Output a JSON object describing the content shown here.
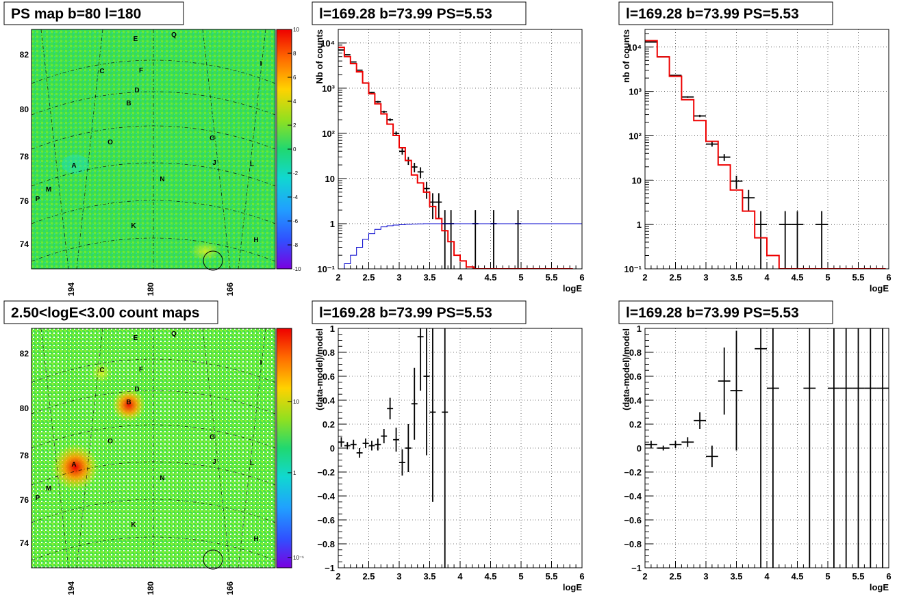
{
  "panels": {
    "map_ps": {
      "title": "PS map b=80 l=180"
    },
    "map_counts": {
      "title": "2.50<logE<3.00 count maps"
    },
    "spec_left": {
      "title": "l=169.28 b=73.99 PS=5.53"
    },
    "spec_right": {
      "title": "l=169.28 b=73.99 PS=5.53"
    },
    "res_left": {
      "title": "l=169.28 b=73.99 PS=5.53"
    },
    "res_right": {
      "title": "l=169.28 b=73.99 PS=5.53"
    }
  },
  "maps": {
    "lat_ticks": [
      "82",
      "80",
      "78",
      "76",
      "74"
    ],
    "lon_ticks": [
      "194",
      "180",
      "166"
    ],
    "sources": [
      "A",
      "B",
      "C",
      "D",
      "E",
      "F",
      "G",
      "H",
      "I",
      "J",
      "K",
      "L",
      "M",
      "N",
      "O",
      "P",
      "Q"
    ],
    "ps_colorbar": {
      "ticks": [
        "10",
        "8",
        "6",
        "4",
        "2",
        "0",
        "-2",
        "-4",
        "-6",
        "-8",
        "-10"
      ],
      "range": [
        -10,
        10
      ]
    },
    "count_colorbar": {
      "ticks": [
        "10",
        "1",
        "10⁻¹"
      ],
      "scale": "log"
    }
  },
  "chart_data": [
    {
      "type": "line",
      "title": "l=169.28 b=73.99 PS=5.53",
      "xlabel": "logE",
      "ylabel": "Nb of counts",
      "xlim": [
        2,
        6
      ],
      "ylim": [
        0.1,
        20000
      ],
      "yscale": "log",
      "x_ticks": [
        "2",
        "2.5",
        "3",
        "3.5",
        "4",
        "4.5",
        "5",
        "5.5",
        "6"
      ],
      "y_ticks": [
        "10⁻¹",
        "1",
        "10",
        "10²",
        "10³",
        "10⁴"
      ],
      "grid": true,
      "series": [
        {
          "kind": "data",
          "color": "#000000",
          "x": [
            2.05,
            2.15,
            2.25,
            2.35,
            2.45,
            2.55,
            2.65,
            2.75,
            2.85,
            2.95,
            3.05,
            3.15,
            3.25,
            3.35,
            3.45,
            3.55,
            3.65,
            3.75,
            3.85,
            4.25,
            4.55,
            4.95
          ],
          "y": [
            7000,
            5500,
            3800,
            2500,
            1300,
            800,
            500,
            300,
            200,
            100,
            40,
            25,
            18,
            14,
            6,
            3,
            3,
            1,
            1,
            1,
            1,
            1
          ]
        },
        {
          "kind": "model",
          "color": "#ee0000",
          "x": [
            2.05,
            2.15,
            2.25,
            2.35,
            2.45,
            2.55,
            2.65,
            2.75,
            2.85,
            2.95,
            3.05,
            3.15,
            3.25,
            3.35,
            3.45,
            3.55,
            3.65,
            3.75,
            3.85,
            3.95,
            4.05,
            4.15,
            4.3,
            4.7,
            5.2,
            5.8
          ],
          "y": [
            8000,
            5000,
            3500,
            2300,
            1300,
            750,
            450,
            270,
            160,
            90,
            48,
            25,
            12,
            8,
            5,
            2.4,
            1.3,
            0.7,
            0.4,
            0.2,
            0.15,
            0.11,
            0.1,
            0.1,
            0.1,
            0.1
          ]
        },
        {
          "kind": "acceptance",
          "color": "#0000cc",
          "x": [
            2.05,
            2.15,
            2.25,
            2.35,
            2.45,
            2.55,
            2.65,
            2.75,
            2.85,
            2.95,
            3.05,
            3.15,
            3.25,
            3.35,
            3.45,
            3.55,
            4.0,
            4.5,
            5.0,
            5.5,
            5.95
          ],
          "y": [
            0.1,
            0.13,
            0.2,
            0.3,
            0.45,
            0.6,
            0.75,
            0.85,
            0.9,
            0.93,
            0.95,
            0.97,
            0.98,
            0.99,
            1,
            1,
            1,
            1,
            1,
            1,
            1
          ]
        }
      ]
    },
    {
      "type": "line",
      "title": "l=169.28 b=73.99 PS=5.53",
      "xlabel": "logE",
      "ylabel": "nb of counts",
      "xlim": [
        2,
        6
      ],
      "ylim": [
        0.1,
        25000
      ],
      "yscale": "log",
      "x_ticks": [
        "2",
        "2.5",
        "3",
        "3.5",
        "4",
        "4.5",
        "5",
        "5.5",
        "6"
      ],
      "y_ticks": [
        "10⁻¹",
        "1",
        "10",
        "10²",
        "10³",
        "10⁴"
      ],
      "grid": true,
      "series": [
        {
          "kind": "data",
          "color": "#000000",
          "x": [
            2.1,
            2.3,
            2.5,
            2.7,
            2.9,
            3.1,
            3.3,
            3.5,
            3.7,
            3.9,
            4.3,
            4.5,
            4.9
          ],
          "y": [
            13000,
            6000,
            2300,
            750,
            280,
            65,
            33,
            9.5,
            4,
            1,
            1,
            1,
            1
          ]
        },
        {
          "kind": "model",
          "color": "#ee0000",
          "x": [
            2.1,
            2.3,
            2.5,
            2.7,
            2.9,
            3.1,
            3.3,
            3.5,
            3.7,
            3.9,
            4.1,
            4.3,
            5.1,
            5.9
          ],
          "y": [
            14000,
            6000,
            2200,
            650,
            220,
            75,
            22,
            6,
            2,
            0.5,
            0.2,
            0.1,
            0.1,
            0.1
          ]
        }
      ]
    },
    {
      "type": "scatter",
      "title": "l=169.28 b=73.99 PS=5.53",
      "xlabel": "logE",
      "ylabel": "(data-model)/model",
      "xlim": [
        2,
        6
      ],
      "ylim": [
        -1,
        1
      ],
      "x_ticks": [
        "2",
        "2.5",
        "3",
        "3.5",
        "4",
        "4.5",
        "5",
        "5.5",
        "6"
      ],
      "y_ticks": [
        "-1",
        "-0.8",
        "-0.6",
        "-0.4",
        "-0.2",
        "0",
        "0.2",
        "0.4",
        "0.6",
        "0.8",
        "1"
      ],
      "grid": true,
      "series": [
        {
          "kind": "residual",
          "color": "#000000",
          "x": [
            2.05,
            2.15,
            2.25,
            2.35,
            2.45,
            2.55,
            2.65,
            2.75,
            2.85,
            2.95,
            3.05,
            3.15,
            3.25,
            3.35,
            3.45,
            3.55,
            3.75
          ],
          "y": [
            0.05,
            0.02,
            0.03,
            -0.04,
            0.04,
            0.02,
            0.03,
            0.1,
            0.33,
            0.07,
            -0.12,
            0.0,
            0.37,
            0.93,
            0.6,
            0.3,
            0.3
          ],
          "err": [
            0.04,
            0.03,
            0.04,
            0.04,
            0.04,
            0.04,
            0.05,
            0.06,
            0.09,
            0.1,
            0.11,
            0.2,
            0.3,
            0.45,
            0.66,
            0.75,
            1.5
          ]
        }
      ]
    },
    {
      "type": "scatter",
      "title": "l=169.28 b=73.99 PS=5.53",
      "xlabel": "logE",
      "ylabel": "(data-model)/model",
      "xlim": [
        2,
        6
      ],
      "ylim": [
        -1,
        1
      ],
      "x_ticks": [
        "2",
        "2.5",
        "3",
        "3.5",
        "4",
        "4.5",
        "5",
        "5.5",
        "6"
      ],
      "y_ticks": [
        "-1",
        "-0.8",
        "-0.6",
        "-0.4",
        "-0.2",
        "0",
        "0.2",
        "0.4",
        "0.6",
        "0.8",
        "1"
      ],
      "grid": true,
      "series": [
        {
          "kind": "residual",
          "color": "#000000",
          "x": [
            2.1,
            2.3,
            2.5,
            2.7,
            2.9,
            3.1,
            3.3,
            3.5,
            3.9,
            4.1,
            4.7,
            5.1,
            5.3,
            5.5,
            5.7,
            5.9
          ],
          "y": [
            0.03,
            0.0,
            0.03,
            0.05,
            0.23,
            -0.07,
            0.56,
            0.48,
            0.83,
            0.5,
            0.5,
            0.5,
            0.5,
            0.5,
            0.5,
            0.5
          ],
          "err": [
            0.03,
            0.02,
            0.03,
            0.04,
            0.07,
            0.09,
            0.28,
            0.5,
            2.0,
            2.0,
            2.0,
            2.0,
            2.0,
            2.0,
            2.0,
            2.0
          ]
        }
      ]
    }
  ]
}
